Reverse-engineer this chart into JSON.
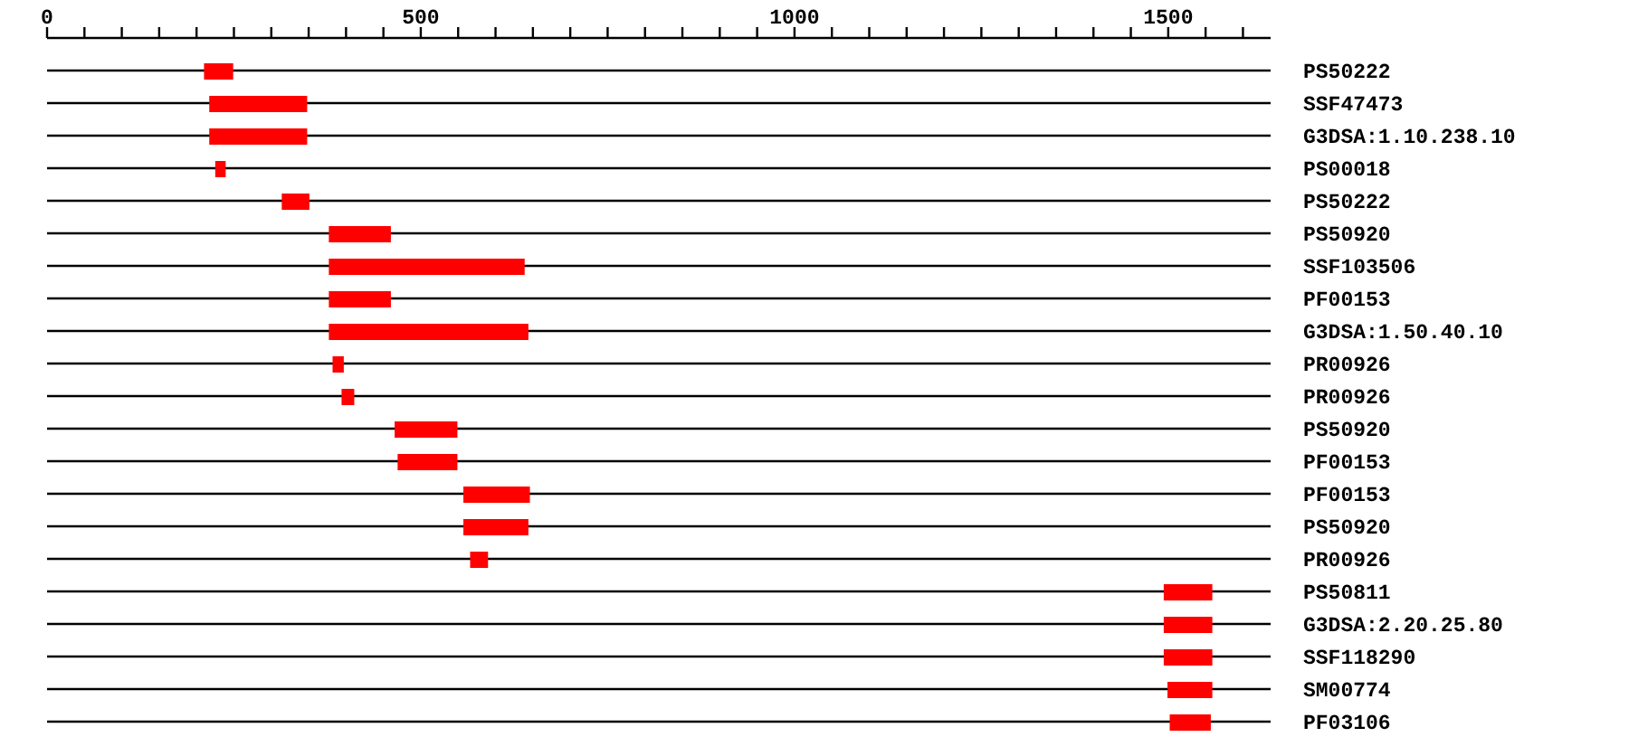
{
  "chart_data": {
    "type": "bar",
    "orientation": "horizontal",
    "categories": [
      "PS50222",
      "SSF47473",
      "G3DSA:1.10.238.10",
      "PS00018",
      "PS50222",
      "PS50920",
      "SSF103506",
      "PF00153",
      "G3DSA:1.50.40.10",
      "PR00926",
      "PR00926",
      "PS50920",
      "PF00153",
      "PF00153",
      "PS50920",
      "PR00926",
      "PS50811",
      "G3DSA:2.20.25.80",
      "SSF118290",
      "SM00774",
      "PF03106"
    ],
    "base": [
      210,
      217,
      217,
      225,
      314,
      377,
      377,
      377,
      377,
      382,
      394,
      465,
      469,
      557,
      557,
      566,
      1494,
      1494,
      1494,
      1499,
      1502
    ],
    "values": [
      39,
      131,
      131,
      14,
      37,
      83,
      262,
      83,
      267,
      15,
      17,
      84,
      80,
      89,
      87,
      24,
      65,
      65,
      65,
      60,
      55
    ],
    "color": "#ff0000",
    "xlim": [
      0,
      1637
    ],
    "xticks": [
      0,
      {
        "value": 50,
        "label": null
      },
      {
        "value": 100,
        "label": null
      },
      {
        "value": 150,
        "label": null
      },
      {
        "value": 200,
        "label": null
      },
      {
        "value": 250,
        "label": null
      },
      {
        "value": 300,
        "label": null
      },
      {
        "value": 350,
        "label": null
      },
      {
        "value": 400,
        "label": null
      },
      {
        "value": 450,
        "label": null
      },
      500,
      {
        "value": 550,
        "label": null
      },
      {
        "value": 600,
        "label": null
      },
      {
        "value": 650,
        "label": null
      },
      {
        "value": 700,
        "label": null
      },
      {
        "value": 750,
        "label": null
      },
      {
        "value": 800,
        "label": null
      },
      {
        "value": 850,
        "label": null
      },
      {
        "value": 900,
        "label": null
      },
      {
        "value": 950,
        "label": null
      },
      1000,
      {
        "value": 1050,
        "label": null
      },
      {
        "value": 1100,
        "label": null
      },
      {
        "value": 1150,
        "label": null
      },
      {
        "value": 1200,
        "label": null
      },
      {
        "value": 1250,
        "label": null
      },
      {
        "value": 1300,
        "label": null
      },
      {
        "value": 1350,
        "label": null
      },
      {
        "value": 1400,
        "label": null
      },
      {
        "value": 1450,
        "label": null
      },
      1500,
      {
        "value": 1550,
        "label": null
      },
      {
        "value": 1600,
        "label": null
      }
    ],
    "grid": "y"
  }
}
